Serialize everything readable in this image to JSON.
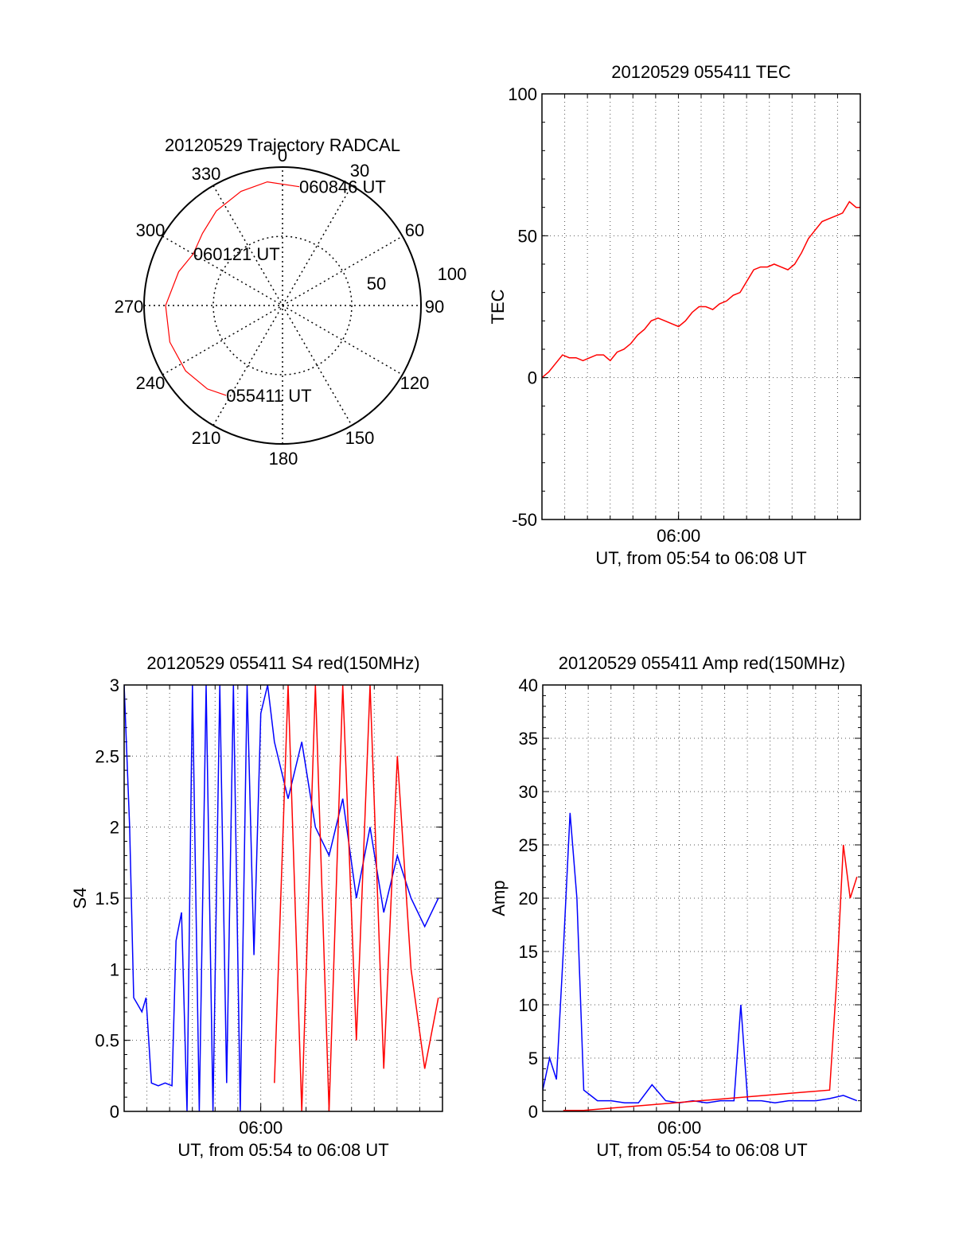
{
  "chart_data": [
    {
      "type": "polar",
      "title": "20120529 Trajectory RADCAL",
      "azimuth_labels": [
        "0",
        "30",
        "60",
        "90",
        "120",
        "150",
        "180",
        "210",
        "240",
        "270",
        "300",
        "330"
      ],
      "radial_labels": [
        "50",
        "100"
      ],
      "trajectory_color": "#ff0000",
      "trajectory": [
        {
          "az": 212,
          "el": 21
        },
        {
          "az": 222,
          "el": 17
        },
        {
          "az": 236,
          "el": 14
        },
        {
          "az": 252,
          "el": 13
        },
        {
          "az": 270,
          "el": 14
        },
        {
          "az": 288,
          "el": 19
        },
        {
          "az": 300,
          "el": 23
        },
        {
          "az": 312,
          "el": 20
        },
        {
          "az": 325,
          "el": 15
        },
        {
          "az": 340,
          "el": 11
        },
        {
          "az": 353,
          "el": 9
        },
        {
          "az": 8,
          "el": 12
        }
      ],
      "annotations": [
        {
          "text": "055411 UT",
          "az": 212,
          "el": 21
        },
        {
          "text": "060121 UT",
          "az": 300,
          "el": 23
        },
        {
          "text": "060846 UT",
          "az": 8,
          "el": 12
        }
      ]
    },
    {
      "type": "line",
      "title": "20120529 055411 TEC",
      "xlabel": "UT, from 05:54 to 06:08 UT",
      "ylabel": "TEC",
      "xlim": [
        5.9,
        6.133
      ],
      "ylim": [
        -50,
        100
      ],
      "yticks": [
        "-50",
        "0",
        "50",
        "100"
      ],
      "xticks": [
        {
          "label": "06:00",
          "value": 6.0
        }
      ],
      "grid": true,
      "series": [
        {
          "color": "#ff0000",
          "x": [
            5.9,
            5.905,
            5.91,
            5.915,
            5.92,
            5.925,
            5.93,
            5.935,
            5.94,
            5.945,
            5.95,
            5.955,
            5.96,
            5.965,
            5.97,
            5.975,
            5.98,
            5.985,
            5.99,
            5.995,
            6.0,
            6.005,
            6.01,
            6.015,
            6.02,
            6.025,
            6.03,
            6.035,
            6.04,
            6.045,
            6.05,
            6.055,
            6.06,
            6.065,
            6.07,
            6.075,
            6.08,
            6.085,
            6.09,
            6.095,
            6.1,
            6.105,
            6.11,
            6.115,
            6.12,
            6.125,
            6.13,
            6.133
          ],
          "y": [
            0,
            2,
            5,
            8,
            7,
            7,
            6,
            7,
            8,
            8,
            6,
            9,
            10,
            12,
            15,
            17,
            20,
            21,
            20,
            19,
            18,
            20,
            23,
            25,
            25,
            24,
            26,
            27,
            29,
            30,
            34,
            38,
            39,
            39,
            40,
            39,
            38,
            40,
            44,
            49,
            52,
            55,
            56,
            57,
            58,
            62,
            60,
            60
          ]
        }
      ]
    },
    {
      "type": "line",
      "title": "20120529 055411 S4 red(150MHz)",
      "xlabel": "UT, from 05:54 to 06:08 UT",
      "ylabel": "S4",
      "xlim": [
        5.9,
        6.133
      ],
      "ylim": [
        0,
        3
      ],
      "yticks": [
        "0",
        "0.5",
        "1",
        "1.5",
        "2",
        "2.5",
        "3"
      ],
      "xticks": [
        {
          "label": "06:00",
          "value": 6.0
        }
      ],
      "grid": true,
      "series": [
        {
          "color": "#0000ff",
          "x": [
            5.9,
            5.904,
            5.907,
            5.91,
            5.913,
            5.916,
            5.92,
            5.925,
            5.93,
            5.935,
            5.938,
            5.942,
            5.946,
            5.95,
            5.955,
            5.96,
            5.965,
            5.97,
            5.975,
            5.98,
            5.985,
            5.99,
            5.995,
            6.0,
            6.005,
            6.01,
            6.02,
            6.03,
            6.04,
            6.05,
            6.06,
            6.07,
            6.08,
            6.09,
            6.1,
            6.11,
            6.12,
            6.13
          ],
          "y": [
            3,
            2,
            0.8,
            0.75,
            0.7,
            0.8,
            0.2,
            0.18,
            0.2,
            0.18,
            1.2,
            1.4,
            0,
            3,
            0,
            3,
            0,
            3,
            0.2,
            3,
            0,
            3,
            1.1,
            2.8,
            3,
            2.6,
            2.2,
            2.6,
            2.0,
            1.8,
            2.2,
            1.5,
            2.0,
            1.4,
            1.8,
            1.5,
            1.3,
            1.5
          ]
        },
        {
          "color": "#ff0000",
          "x": [
            6.01,
            6.02,
            6.03,
            6.04,
            6.05,
            6.06,
            6.07,
            6.08,
            6.09,
            6.1,
            6.11,
            6.12,
            6.13
          ],
          "y": [
            0.2,
            3,
            0,
            3,
            0,
            3,
            0.5,
            3,
            0.3,
            2.5,
            1.0,
            0.3,
            0.8
          ]
        }
      ]
    },
    {
      "type": "line",
      "title": "20120529 055411 Amp red(150MHz)",
      "xlabel": "UT, from 05:54 to 06:08 UT",
      "ylabel": "Amp",
      "xlim": [
        5.9,
        6.133
      ],
      "ylim": [
        0,
        40
      ],
      "yticks": [
        "0",
        "5",
        "10",
        "15",
        "20",
        "25",
        "30",
        "35",
        "40"
      ],
      "xticks": [
        {
          "label": "06:00",
          "value": 6.0
        }
      ],
      "grid": true,
      "series": [
        {
          "color": "#0000ff",
          "x": [
            5.9,
            5.905,
            5.91,
            5.915,
            5.92,
            5.925,
            5.93,
            5.935,
            5.94,
            5.95,
            5.96,
            5.97,
            5.98,
            5.99,
            6.0,
            6.01,
            6.02,
            6.03,
            6.04,
            6.045,
            6.05,
            6.06,
            6.07,
            6.08,
            6.09,
            6.1,
            6.11,
            6.12,
            6.13
          ],
          "y": [
            2,
            5,
            3,
            15,
            28,
            20,
            2,
            1.5,
            1,
            1,
            0.8,
            0.8,
            2.5,
            1,
            0.8,
            1,
            0.8,
            1,
            1,
            10,
            1,
            1,
            0.8,
            1,
            1,
            1,
            1.2,
            1.5,
            1
          ]
        },
        {
          "color": "#ff0000",
          "x": [
            5.915,
            5.93,
            6.11,
            6.115,
            6.12,
            6.125,
            6.13
          ],
          "y": [
            0.1,
            0.1,
            2,
            12,
            25,
            20,
            22
          ]
        }
      ]
    }
  ]
}
